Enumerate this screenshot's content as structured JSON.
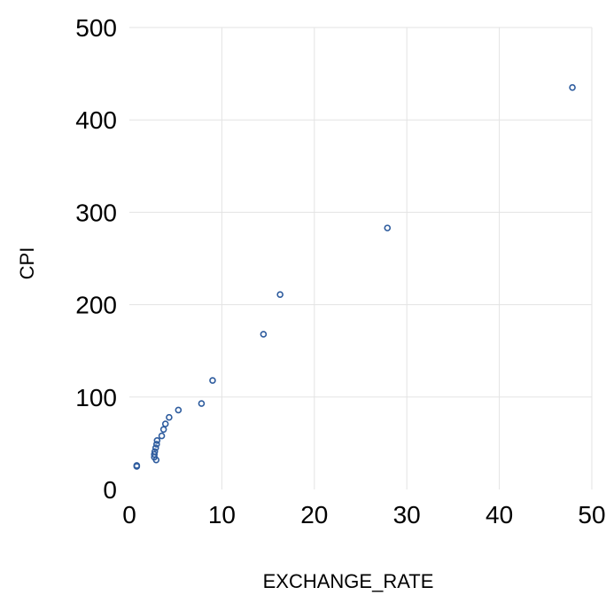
{
  "chart_data": {
    "type": "scatter",
    "title": "",
    "xlabel": "EXCHANGE_RATE",
    "ylabel": "CPI",
    "xlim": [
      0,
      50
    ],
    "ylim": [
      0,
      500
    ],
    "xticks": [
      0,
      10,
      20,
      30,
      40,
      50
    ],
    "yticks": [
      0,
      100,
      200,
      300,
      400,
      500
    ],
    "grid": "vertical and horizontal",
    "legend": "none",
    "marker": "hollow circle",
    "series": [
      {
        "color": "#2e5c9e",
        "points": [
          {
            "x": 0.8,
            "y": 25
          },
          {
            "x": 0.8,
            "y": 26
          },
          {
            "x": 2.9,
            "y": 32
          },
          {
            "x": 2.7,
            "y": 35
          },
          {
            "x": 2.7,
            "y": 38
          },
          {
            "x": 2.75,
            "y": 41
          },
          {
            "x": 2.85,
            "y": 45
          },
          {
            "x": 2.95,
            "y": 49
          },
          {
            "x": 3.0,
            "y": 53
          },
          {
            "x": 3.5,
            "y": 58
          },
          {
            "x": 3.7,
            "y": 65
          },
          {
            "x": 3.9,
            "y": 71
          },
          {
            "x": 4.3,
            "y": 78
          },
          {
            "x": 5.3,
            "y": 86
          },
          {
            "x": 7.8,
            "y": 93
          },
          {
            "x": 9.0,
            "y": 118
          },
          {
            "x": 14.5,
            "y": 168
          },
          {
            "x": 16.3,
            "y": 211
          },
          {
            "x": 27.9,
            "y": 283
          },
          {
            "x": 47.9,
            "y": 435
          }
        ]
      }
    ]
  }
}
